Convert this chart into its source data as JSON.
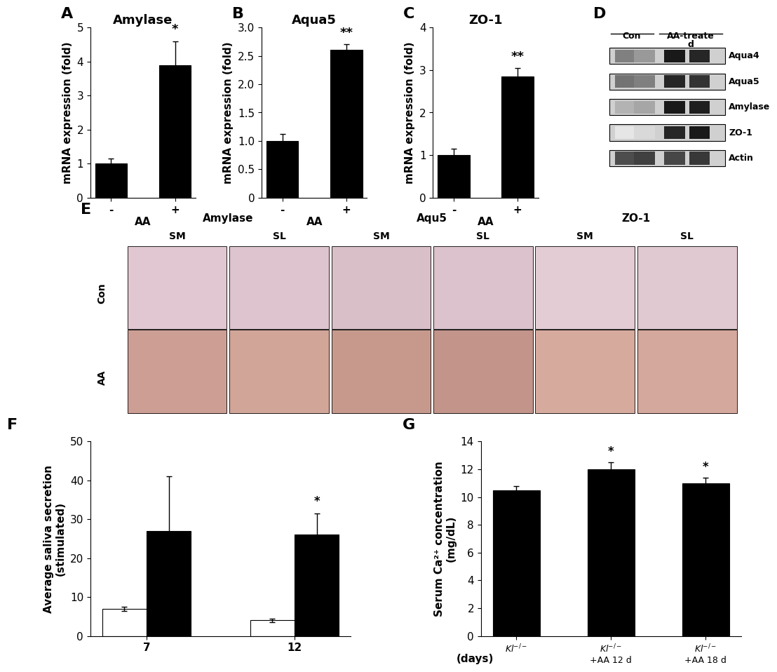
{
  "panel_A": {
    "title": "Amylase",
    "xlabel": "AA",
    "ylabel": "mRNA expression (fold)",
    "categories": [
      "-",
      "+"
    ],
    "values": [
      1.0,
      3.9
    ],
    "errors": [
      0.15,
      0.7
    ],
    "ylim": [
      0,
      5
    ],
    "yticks": [
      0,
      1,
      2,
      3,
      4,
      5
    ],
    "sig_label": "*",
    "sig_bar_idx": 1
  },
  "panel_B": {
    "title": "Aqua5",
    "xlabel": "AA",
    "ylabel": "mRNA expression (fold)",
    "categories": [
      "-",
      "+"
    ],
    "values": [
      1.0,
      2.6
    ],
    "errors": [
      0.12,
      0.1
    ],
    "ylim": [
      0,
      3
    ],
    "yticks": [
      0,
      0.5,
      1.0,
      1.5,
      2.0,
      2.5,
      3.0
    ],
    "sig_label": "**",
    "sig_bar_idx": 1
  },
  "panel_C": {
    "title": "ZO-1",
    "xlabel": "AA",
    "ylabel": "mRNA expression (fold)",
    "categories": [
      "-",
      "+"
    ],
    "values": [
      1.0,
      2.85
    ],
    "errors": [
      0.15,
      0.2
    ],
    "ylim": [
      0,
      4
    ],
    "yticks": [
      0,
      1,
      2,
      3,
      4
    ],
    "sig_label": "**",
    "sig_bar_idx": 1
  },
  "panel_D": {
    "labels": [
      "Aqua4",
      "Aqua5",
      "Amylase",
      "ZO-1",
      "Actin"
    ],
    "band_darkness": {
      "Aqua4": [
        0.5,
        0.4,
        0.9,
        0.85
      ],
      "Aqua5": [
        0.55,
        0.5,
        0.85,
        0.8
      ],
      "Amylase": [
        0.3,
        0.35,
        0.9,
        0.88
      ],
      "ZO-1": [
        0.1,
        0.15,
        0.85,
        0.9
      ],
      "Actin": [
        0.7,
        0.75,
        0.72,
        0.78
      ]
    }
  },
  "panel_E": {
    "group_titles": [
      "Amylase",
      "Aqu5",
      "ZO-1"
    ],
    "sub_headers": [
      "SM",
      "SL",
      "SM",
      "SL",
      "SM",
      "SL"
    ],
    "row_labels": [
      "Con",
      "AA"
    ],
    "n_cols": 6,
    "n_rows": 2
  },
  "panel_F": {
    "ylabel": "Average saliva secretion\n(stimulated)",
    "xlabel": "(days)",
    "groups": [
      "7",
      "12"
    ],
    "white_values": [
      7.0,
      4.0
    ],
    "white_errors": [
      0.5,
      0.5
    ],
    "black_values": [
      27.0,
      26.0
    ],
    "black_errors": [
      14.0,
      5.5
    ],
    "ylim": [
      0,
      50
    ],
    "yticks": [
      0,
      10,
      20,
      30,
      40,
      50
    ],
    "sig_label": "*",
    "sig_group_idx": 1
  },
  "panel_G": {
    "ylabel": "Serum Ca²⁺ concentration\n(mg/dL)",
    "categories": [
      "Kl-/-",
      "Kl-/-\n+AA 12 d",
      "Kl-/-\n+AA 18 d"
    ],
    "values": [
      10.5,
      12.0,
      11.0
    ],
    "errors": [
      0.3,
      0.5,
      0.4
    ],
    "ylim": [
      0,
      14
    ],
    "yticks": [
      0,
      2,
      4,
      6,
      8,
      10,
      12,
      14
    ],
    "sig_labels": [
      "",
      "*",
      "*"
    ]
  },
  "bar_color": "#000000",
  "tick_fontsize": 11,
  "axis_label_fontsize": 11,
  "title_fontsize": 13,
  "sig_fontsize": 13,
  "panel_label_fontsize": 16
}
